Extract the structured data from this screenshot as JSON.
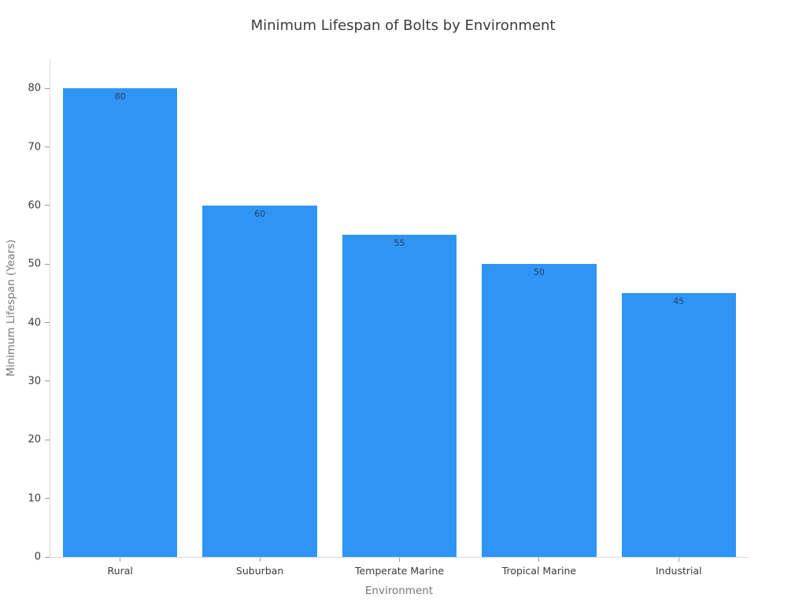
{
  "chart_data": {
    "type": "bar",
    "title": "Minimum Lifespan of Bolts by Environment",
    "xlabel": "Environment",
    "ylabel": "Minimum Lifespan (Years)",
    "categories": [
      "Rural",
      "Suburban",
      "Temperate Marine",
      "Tropical Marine",
      "Industrial"
    ],
    "values": [
      80,
      60,
      55,
      50,
      45
    ],
    "bar_labels": [
      "80",
      "60",
      "55",
      "50",
      "45"
    ],
    "yticks": [
      0,
      10,
      20,
      30,
      40,
      50,
      60,
      70,
      80
    ],
    "ylim": [
      0,
      85
    ],
    "legend": "none",
    "grid": false,
    "colors": {
      "bar": "#2e95f5",
      "bar_label_text": "#2a3f5f",
      "axis_line": "#d9d9d9",
      "tick_mark": "#9a9a9a",
      "tick_label_text": "#3b3b3b",
      "axis_title_text": "#777777",
      "title_text": "#3b3b3b",
      "background": "#ffffff"
    }
  }
}
